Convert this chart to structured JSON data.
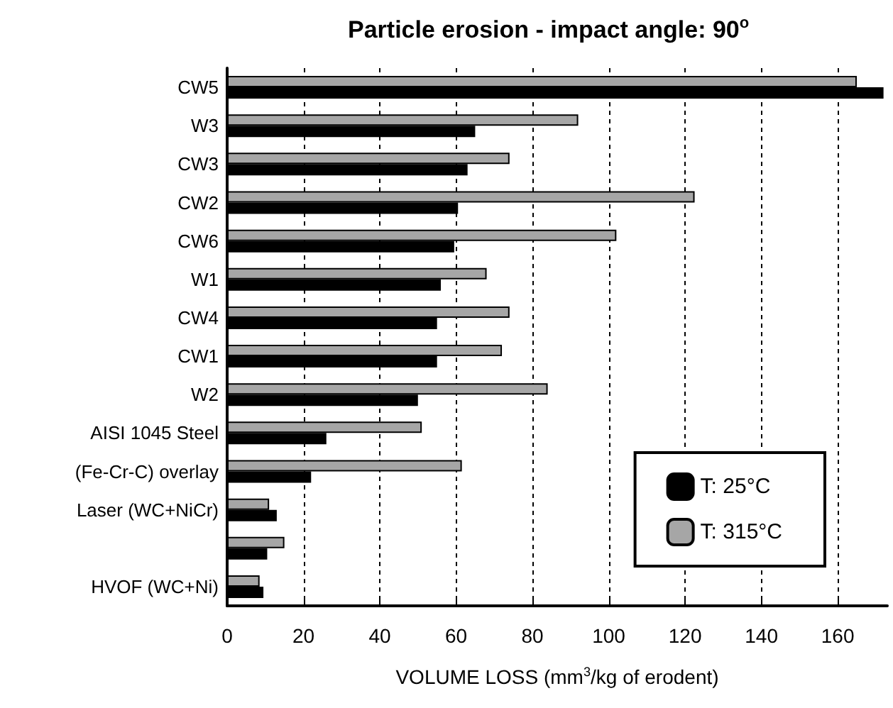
{
  "chart_data": {
    "type": "bar",
    "orientation": "horizontal",
    "title": "Particle erosion - impact angle: 90$^{o}$",
    "xlabel": "VOLUME LOSS (mm$^{3}$/kg of erodent)",
    "categories": [
      "CW5",
      "W3",
      "CW3",
      "CW2",
      "CW6",
      "W1",
      "CW4",
      "CW1",
      "W2",
      "AISI 1045 Steel",
      "(Fe-Cr-C) overlay",
      "Laser (WC+NiCr)",
      null,
      "HVOF (WC+Ni)"
    ],
    "series": [
      {
        "name": "T: 315°C",
        "color": "#a6a6a6",
        "values": [
          165,
          92,
          74,
          122.5,
          102,
          68,
          74,
          72,
          84,
          51,
          61.5,
          11,
          15,
          8.5
        ]
      },
      {
        "name": "T: 25°C",
        "color": "#000000",
        "values": [
          172,
          65,
          63,
          60.5,
          59.5,
          56,
          55,
          55,
          50,
          26,
          22,
          13,
          10.5,
          9.5
        ]
      }
    ],
    "xlim": [
      0,
      173
    ],
    "xticks": [
      0,
      20,
      40,
      60,
      80,
      100,
      120,
      140,
      160
    ],
    "grid": "x",
    "legend": "bottom right"
  }
}
